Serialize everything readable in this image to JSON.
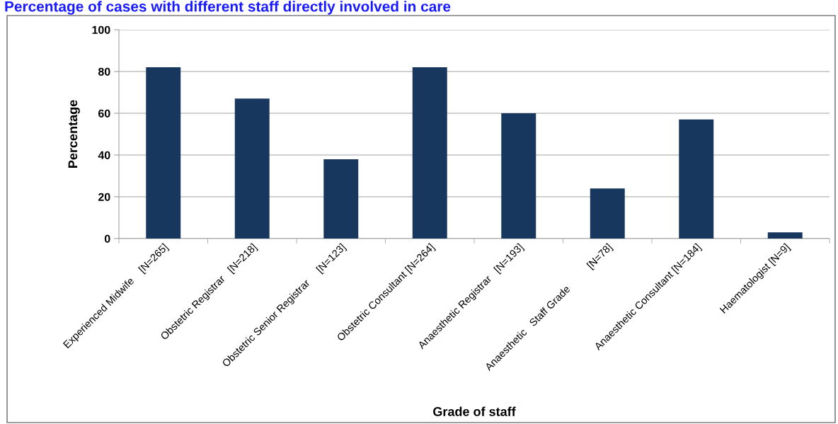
{
  "chart_data": {
    "type": "bar",
    "title": "Percentage of cases with different staff directly involved in care",
    "xlabel": "Grade of staff",
    "ylabel": "Percentage",
    "categories": [
      "Experienced Midwife    [N=265]",
      "Obstetric Registrar   [N=218]",
      "Obstetric Senior Registrar     [N=123]",
      "Obstetric Consultant [N=264]",
      "Anaesthetic Registrar   [N=193]",
      "Anaesthetic   Staff Grade          [N=78]",
      "Anaesthetic Consultant [N=184]",
      "Haematologist [N=9]"
    ],
    "values": [
      82,
      67,
      38,
      82,
      60,
      24,
      57,
      3
    ],
    "color": "#17375e",
    "ylim": [
      0,
      100
    ],
    "yticks": [
      0,
      20,
      40,
      60,
      80,
      100
    ],
    "grid": "y"
  }
}
